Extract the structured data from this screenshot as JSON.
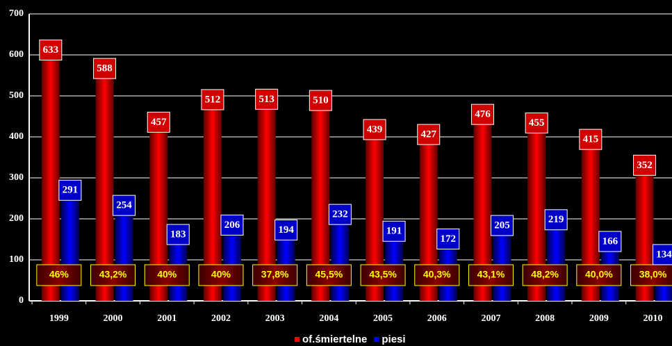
{
  "chart_data": {
    "type": "bar",
    "categories": [
      "1999",
      "2000",
      "2001",
      "2002",
      "2003",
      "2004",
      "2005",
      "2006",
      "2007",
      "2008",
      "2009",
      "2010"
    ],
    "series": [
      {
        "name": "of.śmiertelne",
        "color": "#ff0000",
        "values": [
          633,
          588,
          457,
          512,
          513,
          510,
          439,
          427,
          476,
          455,
          415,
          352
        ]
      },
      {
        "name": "piesi",
        "color": "#0000ff",
        "values": [
          291,
          254,
          183,
          206,
          194,
          232,
          191,
          172,
          205,
          219,
          166,
          134
        ]
      }
    ],
    "annotations": [
      "46%",
      "43,2%",
      "40%",
      "40%",
      "37,8%",
      "45,5%",
      "43,5%",
      "40,3%",
      "43,1%",
      "48,2%",
      "40,0%",
      "38,0%"
    ],
    "ylim": [
      0,
      700
    ],
    "yticks": [
      0,
      100,
      200,
      300,
      400,
      500,
      600,
      700
    ],
    "grid": true,
    "legend": "bottom"
  }
}
